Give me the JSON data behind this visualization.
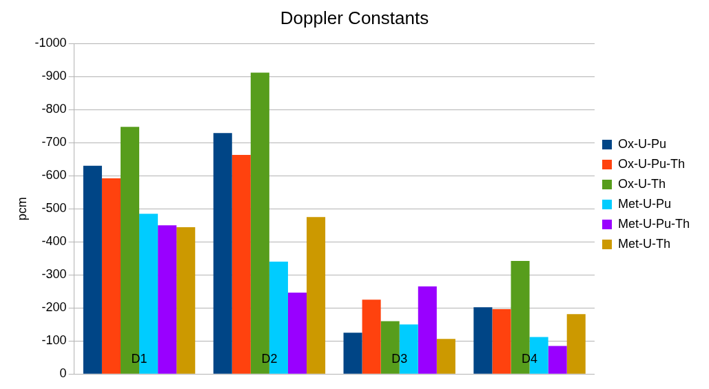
{
  "chart_data": {
    "type": "bar",
    "title": "Doppler Constants",
    "ylabel": "pcm",
    "categories": [
      "D1",
      "D2",
      "D3",
      "D4"
    ],
    "series": [
      {
        "name": "Ox-U-Pu",
        "color": "#004586",
        "values": [
          -630,
          -729,
          -125,
          -202
        ]
      },
      {
        "name": "Ox-U-Pu-Th",
        "color": "#ff420e",
        "values": [
          -592,
          -663,
          -225,
          -196
        ]
      },
      {
        "name": "Ox-U-Th",
        "color": "#579d1c",
        "values": [
          -748,
          -912,
          -160,
          -342
        ]
      },
      {
        "name": "Met-U-Pu",
        "color": "#00ccff",
        "values": [
          -485,
          -340,
          -150,
          -112
        ]
      },
      {
        "name": "Met-U-Pu-Th",
        "color": "#9900ff",
        "values": [
          -450,
          -246,
          -265,
          -85
        ]
      },
      {
        "name": "Met-U-Th",
        "color": "#cc9900",
        "values": [
          -444,
          -475,
          -106,
          -181
        ]
      }
    ],
    "ylim": [
      0,
      -1000
    ],
    "yticks": [
      0,
      -100,
      -200,
      -300,
      -400,
      -500,
      -600,
      -700,
      -800,
      -900,
      -1000
    ],
    "grid": "y",
    "legend": "right"
  }
}
